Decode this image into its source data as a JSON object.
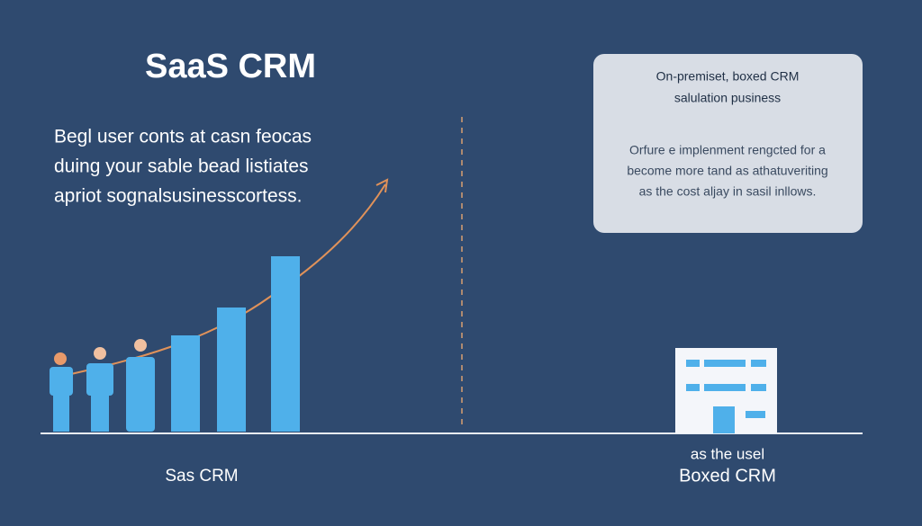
{
  "title": "SaaS CRM",
  "intro": {
    "lines": [
      "Begl user conts at casn feocas",
      "duing your sable bead listiates",
      "apriot sognalsusinesscortess."
    ]
  },
  "card": {
    "title_lines": [
      "On-premiset, boxed CRM",
      "salulation pusiness"
    ],
    "body_lines": [
      "Orfure e implenment rengcted for a",
      "become more tand as athatuveriting",
      "as the cost aljay in sasil inllows."
    ]
  },
  "left_label": "Sas CRM",
  "right_label": {
    "caption": "as the usel",
    "title": "Boxed CRM"
  }
}
